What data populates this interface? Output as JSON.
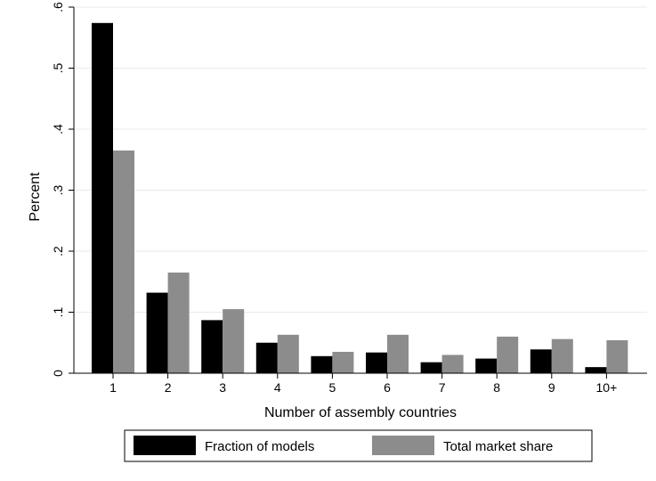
{
  "chart_data": {
    "type": "bar",
    "categories": [
      "1",
      "2",
      "3",
      "4",
      "5",
      "6",
      "7",
      "8",
      "9",
      "10+"
    ],
    "series": [
      {
        "name": "Fraction of models",
        "color": "#000000",
        "values": [
          0.574,
          0.132,
          0.087,
          0.05,
          0.028,
          0.034,
          0.018,
          0.024,
          0.039,
          0.01
        ]
      },
      {
        "name": "Total market share",
        "color": "#8c8c8c",
        "values": [
          0.365,
          0.165,
          0.105,
          0.063,
          0.035,
          0.063,
          0.03,
          0.06,
          0.056,
          0.054
        ]
      }
    ],
    "xlabel": "Number of assembly countries",
    "ylabel": "Percent",
    "ylim": [
      0,
      0.6
    ],
    "yticks": [
      0,
      0.1,
      0.2,
      0.3,
      0.4,
      0.5,
      0.6
    ],
    "ytick_labels": [
      "0",
      ".1",
      ".2",
      ".3",
      ".4",
      ".5",
      ".6"
    ],
    "grid": true,
    "legend_position": "bottom",
    "colors": {
      "gridline": "#eaeaea",
      "axis": "#000000"
    }
  }
}
